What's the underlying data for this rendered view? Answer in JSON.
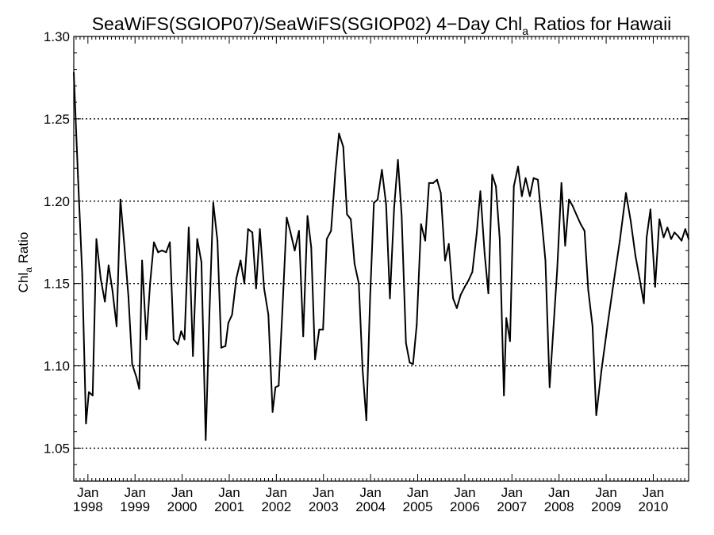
{
  "chart_data": {
    "type": "line",
    "title": {
      "main": "SeaWiFS(SGIOP07)/SeaWiFS(SGIOP02) 4−Day Chl",
      "sub": "a",
      "tail": " Ratios for Hawaii"
    },
    "ylabel": {
      "main": "Chl",
      "sub": "a",
      "tail": " Ratio"
    },
    "xlabel": "",
    "ylim": [
      1.03,
      1.3
    ],
    "xlim": [
      1997.7,
      2010.75
    ],
    "yticks": [
      {
        "value": 1.05,
        "label": "1.05"
      },
      {
        "value": 1.1,
        "label": "1.10"
      },
      {
        "value": 1.15,
        "label": "1.15"
      },
      {
        "value": 1.2,
        "label": "1.20"
      },
      {
        "value": 1.25,
        "label": "1.25"
      },
      {
        "value": 1.3,
        "label": "1.30"
      }
    ],
    "xticks": [
      {
        "value": 1998,
        "month": "Jan",
        "year": "1998"
      },
      {
        "value": 1999,
        "month": "Jan",
        "year": "1999"
      },
      {
        "value": 2000,
        "month": "Jan",
        "year": "2000"
      },
      {
        "value": 2001,
        "month": "Jan",
        "year": "2001"
      },
      {
        "value": 2002,
        "month": "Jan",
        "year": "2002"
      },
      {
        "value": 2003,
        "month": "Jan",
        "year": "2003"
      },
      {
        "value": 2004,
        "month": "Jan",
        "year": "2004"
      },
      {
        "value": 2005,
        "month": "Jan",
        "year": "2005"
      },
      {
        "value": 2006,
        "month": "Jan",
        "year": "2006"
      },
      {
        "value": 2007,
        "month": "Jan",
        "year": "2007"
      },
      {
        "value": 2008,
        "month": "Jan",
        "year": "2008"
      },
      {
        "value": 2009,
        "month": "Jan",
        "year": "2009"
      },
      {
        "value": 2010,
        "month": "Jan",
        "year": "2010"
      }
    ],
    "grid": "horizontal dotted",
    "legend": "none",
    "series": [
      {
        "color": "#000000",
        "points": [
          [
            1997.7,
            1.278
          ],
          [
            1997.79,
            1.215
          ],
          [
            1997.88,
            1.155
          ],
          [
            1997.96,
            1.065
          ],
          [
            1998.02,
            1.084
          ],
          [
            1998.1,
            1.082
          ],
          [
            1998.18,
            1.177
          ],
          [
            1998.27,
            1.153
          ],
          [
            1998.36,
            1.139
          ],
          [
            1998.44,
            1.161
          ],
          [
            1998.52,
            1.146
          ],
          [
            1998.61,
            1.124
          ],
          [
            1998.69,
            1.201
          ],
          [
            1998.78,
            1.171
          ],
          [
            1998.86,
            1.142
          ],
          [
            1998.94,
            1.101
          ],
          [
            1999.03,
            1.093
          ],
          [
            1999.09,
            1.086
          ],
          [
            1999.15,
            1.164
          ],
          [
            1999.24,
            1.116
          ],
          [
            1999.32,
            1.15
          ],
          [
            1999.4,
            1.175
          ],
          [
            1999.49,
            1.169
          ],
          [
            1999.57,
            1.17
          ],
          [
            1999.66,
            1.169
          ],
          [
            1999.74,
            1.175
          ],
          [
            1999.82,
            1.116
          ],
          [
            1999.91,
            1.113
          ],
          [
            1999.98,
            1.121
          ],
          [
            2000.05,
            1.116
          ],
          [
            2000.14,
            1.184
          ],
          [
            2000.23,
            1.106
          ],
          [
            2000.32,
            1.177
          ],
          [
            2000.41,
            1.163
          ],
          [
            2000.5,
            1.055
          ],
          [
            2000.58,
            1.132
          ],
          [
            2000.66,
            1.199
          ],
          [
            2000.75,
            1.176
          ],
          [
            2000.83,
            1.111
          ],
          [
            2000.92,
            1.112
          ],
          [
            2000.98,
            1.126
          ],
          [
            2001.06,
            1.131
          ],
          [
            2001.15,
            1.153
          ],
          [
            2001.24,
            1.164
          ],
          [
            2001.32,
            1.15
          ],
          [
            2001.4,
            1.183
          ],
          [
            2001.49,
            1.181
          ],
          [
            2001.57,
            1.147
          ],
          [
            2001.65,
            1.183
          ],
          [
            2001.74,
            1.147
          ],
          [
            2001.83,
            1.131
          ],
          [
            2001.92,
            1.072
          ],
          [
            2001.98,
            1.087
          ],
          [
            2002.05,
            1.088
          ],
          [
            2002.13,
            1.135
          ],
          [
            2002.22,
            1.19
          ],
          [
            2002.3,
            1.181
          ],
          [
            2002.39,
            1.17
          ],
          [
            2002.48,
            1.182
          ],
          [
            2002.57,
            1.118
          ],
          [
            2002.66,
            1.191
          ],
          [
            2002.74,
            1.172
          ],
          [
            2002.82,
            1.104
          ],
          [
            2002.91,
            1.122
          ],
          [
            2002.99,
            1.122
          ],
          [
            2003.07,
            1.177
          ],
          [
            2003.16,
            1.182
          ],
          [
            2003.25,
            1.217
          ],
          [
            2003.33,
            1.241
          ],
          [
            2003.42,
            1.233
          ],
          [
            2003.5,
            1.192
          ],
          [
            2003.58,
            1.189
          ],
          [
            2003.66,
            1.162
          ],
          [
            2003.75,
            1.15
          ],
          [
            2003.83,
            1.098
          ],
          [
            2003.91,
            1.067
          ],
          [
            2003.99,
            1.141
          ],
          [
            2004.07,
            1.199
          ],
          [
            2004.15,
            1.201
          ],
          [
            2004.24,
            1.219
          ],
          [
            2004.33,
            1.198
          ],
          [
            2004.41,
            1.141
          ],
          [
            2004.5,
            1.196
          ],
          [
            2004.58,
            1.225
          ],
          [
            2004.66,
            1.191
          ],
          [
            2004.75,
            1.114
          ],
          [
            2004.83,
            1.102
          ],
          [
            2004.9,
            1.101
          ],
          [
            2004.98,
            1.125
          ],
          [
            2005.07,
            1.186
          ],
          [
            2005.16,
            1.176
          ],
          [
            2005.24,
            1.211
          ],
          [
            2005.33,
            1.211
          ],
          [
            2005.41,
            1.213
          ],
          [
            2005.49,
            1.205
          ],
          [
            2005.58,
            1.164
          ],
          [
            2005.66,
            1.174
          ],
          [
            2005.75,
            1.141
          ],
          [
            2005.83,
            1.135
          ],
          [
            2005.91,
            1.143
          ],
          [
            2006.0,
            1.148
          ],
          [
            2006.08,
            1.152
          ],
          [
            2006.16,
            1.157
          ],
          [
            2006.25,
            1.18
          ],
          [
            2006.33,
            1.206
          ],
          [
            2006.42,
            1.168
          ],
          [
            2006.5,
            1.144
          ],
          [
            2006.58,
            1.216
          ],
          [
            2006.66,
            1.209
          ],
          [
            2006.74,
            1.177
          ],
          [
            2006.83,
            1.082
          ],
          [
            2006.88,
            1.129
          ],
          [
            2006.96,
            1.115
          ],
          [
            2007.04,
            1.209
          ],
          [
            2007.13,
            1.221
          ],
          [
            2007.21,
            1.203
          ],
          [
            2007.29,
            1.214
          ],
          [
            2007.38,
            1.203
          ],
          [
            2007.46,
            1.214
          ],
          [
            2007.55,
            1.213
          ],
          [
            2007.63,
            1.189
          ],
          [
            2007.71,
            1.164
          ],
          [
            2007.8,
            1.087
          ],
          [
            2007.88,
            1.123
          ],
          [
            2007.96,
            1.158
          ],
          [
            2008.05,
            1.211
          ],
          [
            2008.13,
            1.173
          ],
          [
            2008.21,
            1.201
          ],
          [
            2008.29,
            1.197
          ],
          [
            2008.38,
            1.191
          ],
          [
            2008.46,
            1.186
          ],
          [
            2008.54,
            1.182
          ],
          [
            2008.62,
            1.146
          ],
          [
            2008.71,
            1.124
          ],
          [
            2008.79,
            1.07
          ],
          [
            2008.9,
            1.097
          ],
          [
            2009.03,
            1.125
          ],
          [
            2009.16,
            1.151
          ],
          [
            2009.29,
            1.176
          ],
          [
            2009.42,
            1.205
          ],
          [
            2009.52,
            1.188
          ],
          [
            2009.62,
            1.167
          ],
          [
            2009.71,
            1.153
          ],
          [
            2009.8,
            1.138
          ],
          [
            2009.86,
            1.178
          ],
          [
            2009.94,
            1.195
          ],
          [
            2010.04,
            1.148
          ],
          [
            2010.13,
            1.189
          ],
          [
            2010.22,
            1.178
          ],
          [
            2010.3,
            1.184
          ],
          [
            2010.38,
            1.177
          ],
          [
            2010.45,
            1.181
          ],
          [
            2010.52,
            1.179
          ],
          [
            2010.6,
            1.176
          ],
          [
            2010.68,
            1.183
          ],
          [
            2010.75,
            1.177
          ]
        ]
      }
    ]
  }
}
